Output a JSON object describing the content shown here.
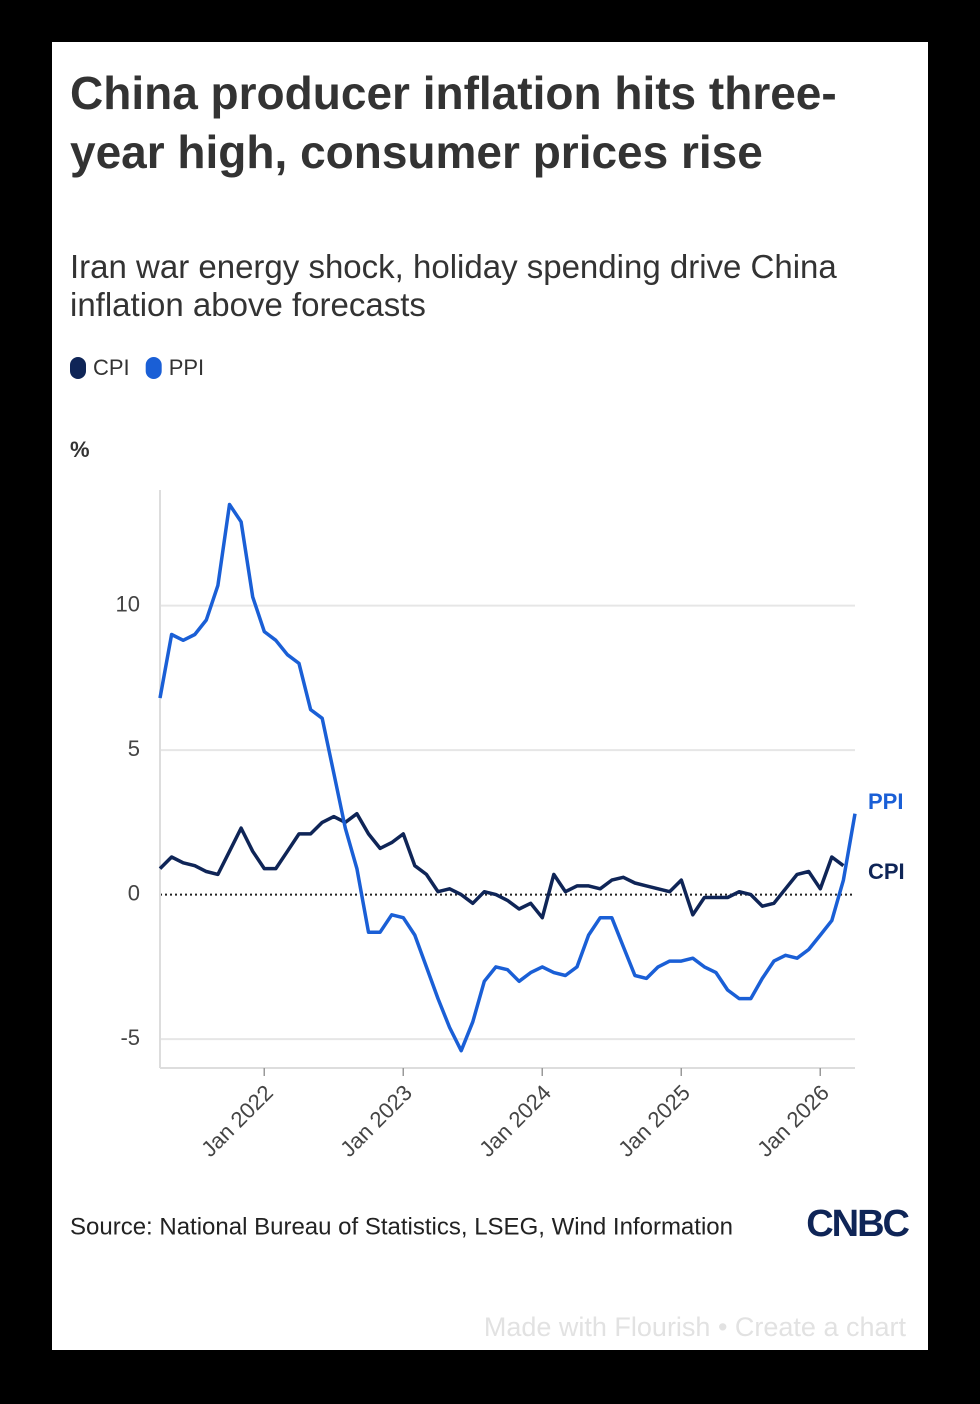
{
  "chart_data": {
    "type": "line",
    "title": "China producer inflation hits three-year high, consumer prices rise",
    "subtitle": "Iran war energy shock, holiday spending drive China inflation above forecasts",
    "y_label": "%",
    "source": "Source: National Bureau of Statistics, LSEG, Wind Information",
    "logo": "CNBC",
    "credit": "Made with Flourish • Create a chart",
    "x": [
      "2021-04",
      "2021-05",
      "2021-06",
      "2021-07",
      "2021-08",
      "2021-09",
      "2021-10",
      "2021-11",
      "2021-12",
      "2022-01",
      "2022-02",
      "2022-03",
      "2022-04",
      "2022-05",
      "2022-06",
      "2022-07",
      "2022-08",
      "2022-09",
      "2022-10",
      "2022-11",
      "2022-12",
      "2023-01",
      "2023-02",
      "2023-03",
      "2023-04",
      "2023-05",
      "2023-06",
      "2023-07",
      "2023-08",
      "2023-09",
      "2023-10",
      "2023-11",
      "2023-12",
      "2024-01",
      "2024-02",
      "2024-03",
      "2024-04",
      "2024-05",
      "2024-06",
      "2024-07",
      "2024-08",
      "2024-09",
      "2024-10",
      "2024-11",
      "2024-12",
      "2025-01",
      "2025-02",
      "2025-03",
      "2025-04",
      "2025-05",
      "2025-06",
      "2025-07",
      "2025-08",
      "2025-09",
      "2025-10",
      "2025-11",
      "2025-12",
      "2026-01",
      "2026-02",
      "2026-03",
      "2026-04"
    ],
    "series": [
      {
        "name": "CPI",
        "color": "#0f2557",
        "values": [
          0.9,
          1.3,
          1.1,
          1.0,
          0.8,
          0.7,
          1.5,
          2.3,
          1.5,
          0.9,
          0.9,
          1.5,
          2.1,
          2.1,
          2.5,
          2.7,
          2.5,
          2.8,
          2.1,
          1.6,
          1.8,
          2.1,
          1.0,
          0.7,
          0.1,
          0.2,
          0.0,
          -0.3,
          0.1,
          0.0,
          -0.2,
          -0.5,
          -0.3,
          -0.8,
          0.7,
          0.1,
          0.3,
          0.3,
          0.2,
          0.5,
          0.6,
          0.4,
          0.3,
          0.2,
          0.1,
          0.5,
          -0.7,
          -0.1,
          -0.1,
          -0.1,
          0.1,
          0.0,
          -0.4,
          -0.3,
          0.2,
          0.7,
          0.8,
          0.2,
          1.3,
          1.0,
          null
        ]
      },
      {
        "name": "PPI",
        "color": "#1a5fd6",
        "values": [
          6.8,
          9.0,
          8.8,
          9.0,
          9.5,
          10.7,
          13.5,
          12.9,
          10.3,
          9.1,
          8.8,
          8.3,
          8.0,
          6.4,
          6.1,
          4.2,
          2.3,
          0.9,
          -1.3,
          -1.3,
          -0.7,
          -0.8,
          -1.4,
          -2.5,
          -3.6,
          -4.6,
          -5.4,
          -4.4,
          -3.0,
          -2.5,
          -2.6,
          -3.0,
          -2.7,
          -2.5,
          -2.7,
          -2.8,
          -2.5,
          -1.4,
          -0.8,
          -0.8,
          -1.8,
          -2.8,
          -2.9,
          -2.5,
          -2.3,
          -2.3,
          -2.2,
          -2.5,
          -2.7,
          -3.3,
          -3.6,
          -3.6,
          -2.9,
          -2.3,
          -2.1,
          -2.2,
          -1.9,
          -1.4,
          -0.9,
          0.5,
          2.8
        ]
      }
    ],
    "xlim": [
      "2021-04",
      "2026-04"
    ],
    "xticks": [
      {
        "value": "2022-01",
        "label": "Jan 2022"
      },
      {
        "value": "2023-01",
        "label": "Jan 2023"
      },
      {
        "value": "2024-01",
        "label": "Jan 2024"
      },
      {
        "value": "2025-01",
        "label": "Jan 2025"
      },
      {
        "value": "2026-01",
        "label": "Jan 2026"
      }
    ],
    "ylim": [
      -6,
      14
    ],
    "yticks": [
      -5,
      0,
      5,
      10
    ],
    "grid": true
  }
}
